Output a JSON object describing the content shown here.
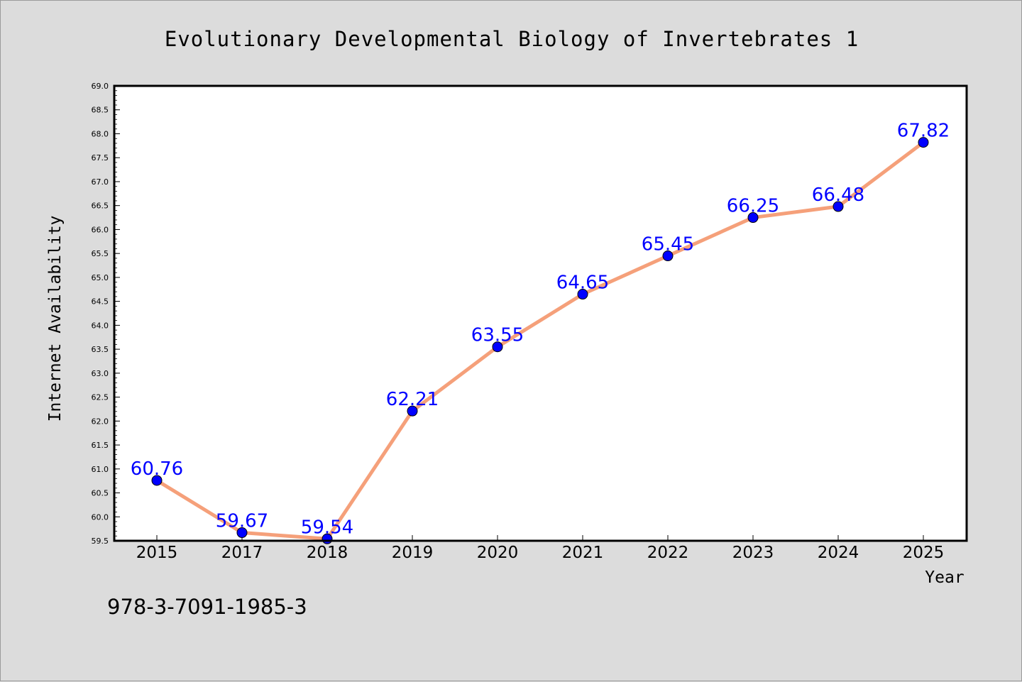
{
  "footer_text": "978-3-7091-1985-3",
  "colors": {
    "background": "#dcdcdc",
    "plot_background": "#ffffff",
    "line": "#f5a07a",
    "marker": "#0000ff",
    "data_label": "#0000ff"
  },
  "chart_data": {
    "type": "line",
    "title": "Evolutionary Developmental Biology of Invertebrates 1",
    "xlabel": "Year",
    "ylabel": "Internet Availability",
    "categories": [
      "2015",
      "2017",
      "2018",
      "2019",
      "2020",
      "2021",
      "2022",
      "2023",
      "2024",
      "2025"
    ],
    "series": [
      {
        "values": [
          60.76,
          59.67,
          59.54,
          62.21,
          63.55,
          64.65,
          65.45,
          66.25,
          66.48,
          67.82
        ],
        "labels": [
          "60.76",
          "59.67",
          "59.54",
          "62.21",
          "63.55",
          "64.65",
          "65.45",
          "66.25",
          "66.48",
          "67.82"
        ]
      }
    ],
    "ylim": [
      59.5,
      69.0
    ],
    "yticks": [
      "59.5",
      "60.0",
      "60.5",
      "61.0",
      "61.5",
      "62.0",
      "62.5",
      "63.0",
      "63.5",
      "64.0",
      "64.5",
      "65.0",
      "65.5",
      "66.0",
      "66.5",
      "67.0",
      "67.5",
      "68.0",
      "68.5",
      "69.0"
    ],
    "grid": false,
    "legend": "none"
  }
}
